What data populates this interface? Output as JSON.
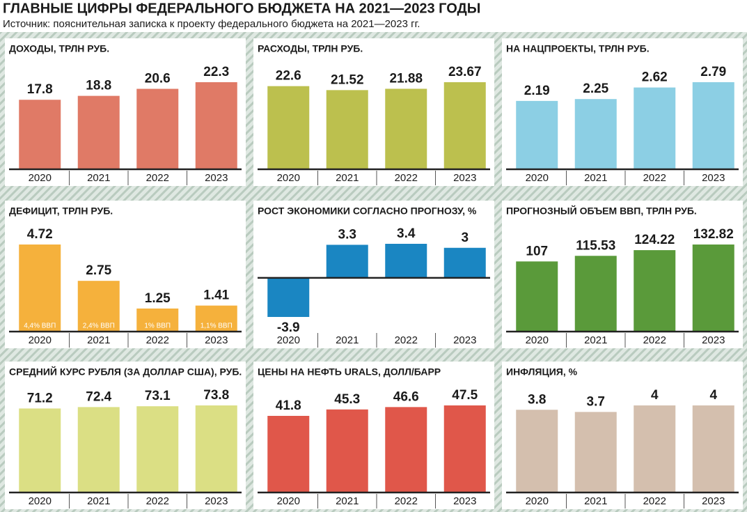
{
  "title": "ГЛАВНЫЕ ЦИФРЫ ФЕДЕРАЛЬНОГО БЮДЖЕТА НА 2021—2023 ГОДЫ",
  "subtitle": "Источник: пояснительная записка к проекту федерального бюджета на 2021—2023 гг.",
  "chart_data": [
    {
      "type": "bar",
      "title": "ДОХОДЫ, ТРЛН РУБ.",
      "categories": [
        "2020",
        "2021",
        "2022",
        "2023"
      ],
      "values": [
        17.8,
        18.8,
        20.6,
        22.3
      ],
      "color": "#e07a66"
    },
    {
      "type": "bar",
      "title": "РАСХОДЫ, ТРЛН РУБ.",
      "categories": [
        "2020",
        "2021",
        "2022",
        "2023"
      ],
      "values": [
        22.6,
        21.52,
        21.88,
        23.67
      ],
      "color": "#bcc04e"
    },
    {
      "type": "bar",
      "title": "НА НАЦПРОЕКТЫ, ТРЛН РУБ.",
      "categories": [
        "2020",
        "2021",
        "2022",
        "2023"
      ],
      "values": [
        2.19,
        2.25,
        2.62,
        2.79
      ],
      "color": "#8ccfe4"
    },
    {
      "type": "bar",
      "title": "ДЕФИЦИТ, ТРЛН РУБ.",
      "categories": [
        "2020",
        "2021",
        "2022",
        "2023"
      ],
      "values": [
        4.72,
        2.75,
        1.25,
        1.41
      ],
      "bar_annotations": [
        "4,4% ВВП",
        "2,4% ВВП",
        "1% ВВП",
        "1,1% ВВП"
      ],
      "color": "#f5b13c"
    },
    {
      "type": "bar",
      "title": "РОСТ ЭКОНОМИКИ СОГЛАСНО ПРОГНОЗУ, %",
      "categories": [
        "2020",
        "2021",
        "2022",
        "2023"
      ],
      "values": [
        -3.9,
        3.3,
        3.4,
        3
      ],
      "color": "#1a86c2"
    },
    {
      "type": "bar",
      "title": "ПРОГНОЗНЫЙ ОБЪЕМ ВВП, ТРЛН РУБ.",
      "categories": [
        "2020",
        "2021",
        "2022",
        "2023"
      ],
      "values": [
        107,
        115.53,
        124.22,
        132.82
      ],
      "color": "#5a9a3a"
    },
    {
      "type": "bar",
      "title": "СРЕДНИЙ КУРС РУБЛЯ (ЗА ДОЛЛАР США), РУБ.",
      "categories": [
        "2020",
        "2021",
        "2022",
        "2023"
      ],
      "values": [
        71.2,
        72.4,
        73.1,
        73.8
      ],
      "color": "#dbdf84"
    },
    {
      "type": "bar",
      "title": "ЦЕНЫ НА НЕФТЬ URALS, ДОЛЛ/БАРР",
      "categories": [
        "2020",
        "2021",
        "2022",
        "2023"
      ],
      "values": [
        41.8,
        45.3,
        46.6,
        47.5
      ],
      "color": "#e0574a"
    },
    {
      "type": "bar",
      "title": "ИНФЛЯЦИЯ, %",
      "categories": [
        "2020",
        "2021",
        "2022",
        "2023"
      ],
      "values": [
        3.8,
        3.7,
        4,
        4
      ],
      "color": "#d4bfae"
    }
  ]
}
